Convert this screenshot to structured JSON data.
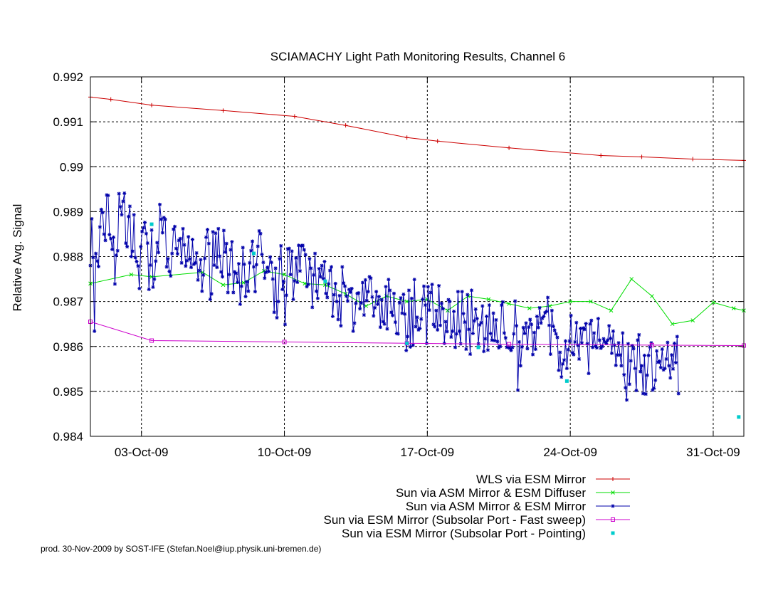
{
  "chart_data": {
    "type": "line",
    "title": "SCIAMACHY Light Path Monitoring Results, Channel 6",
    "xlabel": "",
    "ylabel": "Relative Avg. Signal",
    "x_type": "date",
    "xlim": [
      "2009-09-30T12:00",
      "2009-11-01T12:00"
    ],
    "ylim": [
      0.984,
      0.992
    ],
    "y_ticks": [
      0.984,
      0.985,
      0.986,
      0.987,
      0.988,
      0.989,
      0.99,
      0.991,
      0.992
    ],
    "y_tick_labels": [
      "0.984",
      "0.985",
      "0.986",
      "0.987",
      "0.988",
      "0.989",
      "0.99",
      "0.991",
      "0.992"
    ],
    "x_ticks": [
      "2009-10-03",
      "2009-10-10",
      "2009-10-17",
      "2009-10-24",
      "2009-10-31"
    ],
    "x_tick_labels": [
      "03-Oct-09",
      "10-Oct-09",
      "17-Oct-09",
      "24-Oct-09",
      "31-Oct-09"
    ],
    "grid": true,
    "legend_position": "below-right",
    "series": [
      {
        "name": "WLS via ESM Mirror",
        "color": "#cc0000",
        "marker": "plus",
        "x": [
          "2009-09-30T12:00",
          "2009-10-01T12:00",
          "2009-10-03T12:00",
          "2009-10-07T00:00",
          "2009-10-10T12:00",
          "2009-10-13T00:00",
          "2009-10-16T00:00",
          "2009-10-17T12:00",
          "2009-10-21T00:00",
          "2009-10-25T12:00",
          "2009-10-27T12:00",
          "2009-10-30T00:00",
          "2009-11-01T12:00"
        ],
        "y": [
          0.99155,
          0.9915,
          0.99137,
          0.99125,
          0.99112,
          0.99092,
          0.99065,
          0.99057,
          0.99042,
          0.99025,
          0.99022,
          0.99017,
          0.99014
        ]
      },
      {
        "name": "Sun via ASM Mirror & ESM Diffuser",
        "color": "#00dd00",
        "marker": "x",
        "x": [
          "2009-09-30T12:00",
          "2009-10-02T12:00",
          "2009-10-03T12:00",
          "2009-10-06T00:00",
          "2009-10-07T00:00",
          "2009-10-08T00:00",
          "2009-10-09T00:00",
          "2009-10-10T00:00",
          "2009-10-11T00:00",
          "2009-10-12T00:00",
          "2009-10-13T00:00",
          "2009-10-14T00:00",
          "2009-10-15T00:00",
          "2009-10-16T00:00",
          "2009-10-17T00:00",
          "2009-10-18T00:00",
          "2009-10-19T00:00",
          "2009-10-20T00:00",
          "2009-10-21T00:00",
          "2009-10-22T00:00",
          "2009-10-23T00:00",
          "2009-10-24T00:00",
          "2009-10-25T00:00",
          "2009-10-26T00:00",
          "2009-10-27T00:00",
          "2009-10-28T00:00",
          "2009-10-29T00:00",
          "2009-10-30T00:00",
          "2009-10-31T00:00",
          "2009-11-01T00:00",
          "2009-11-01T12:00"
        ],
        "y": [
          0.9874,
          0.9876,
          0.98755,
          0.98765,
          0.98737,
          0.98742,
          0.98768,
          0.9876,
          0.9874,
          0.98737,
          0.98717,
          0.9869,
          0.98712,
          0.987,
          0.98705,
          0.9868,
          0.98712,
          0.98705,
          0.98695,
          0.98685,
          0.9869,
          0.987,
          0.987,
          0.9868,
          0.9875,
          0.98712,
          0.9865,
          0.98658,
          0.98698,
          0.98685,
          0.9868
        ]
      },
      {
        "name": "Sun via ASM Mirror & ESM Mirror",
        "color": "#0000aa",
        "marker": "star",
        "x0": "2009-09-30T12:00",
        "dx_hours": 1.6,
        "y": [
          0.9878,
          0.98884,
          0.98798,
          0.98634,
          0.98807,
          0.9879,
          0.98778,
          0.98866,
          0.98905,
          0.98898,
          0.9885,
          0.98836,
          0.98937,
          0.98936,
          0.98849,
          0.9884,
          0.98816,
          0.98843,
          0.98739,
          0.98803,
          0.98813,
          0.9894,
          0.98911,
          0.98893,
          0.98923,
          0.98941,
          0.9883,
          0.98822,
          0.98889,
          0.98912,
          0.988,
          0.98812,
          0.98893,
          0.98798,
          0.98789,
          0.98779,
          0.98729,
          0.98822,
          0.98856,
          0.98864,
          0.98876,
          0.98851,
          0.9883,
          0.98727,
          0.98781,
          0.98859,
          0.98732,
          0.9875,
          0.9879,
          0.98831,
          0.98809,
          0.98916,
          0.98883,
          0.98853,
          0.98887,
          0.98883,
          0.98777,
          0.98795,
          0.98767,
          0.98757,
          0.98807,
          0.98861,
          0.98867,
          0.98818,
          0.98806,
          0.98836,
          0.9884,
          0.98786,
          0.98862,
          0.98826,
          0.98779,
          0.98791,
          0.98844,
          0.98795,
          0.98776,
          0.98838,
          0.98783,
          0.98786,
          0.98808,
          0.98748,
          0.98769,
          0.98793,
          0.98723,
          0.98759,
          0.98796,
          0.98843,
          0.9886,
          0.98829,
          0.98705,
          0.98717,
          0.98855,
          0.98781,
          0.98852,
          0.98776,
          0.98862,
          0.98801,
          0.98766,
          0.98755,
          0.98858,
          0.9881,
          0.98829,
          0.9872,
          0.9876,
          0.98815,
          0.98833,
          0.9872,
          0.98766,
          0.98763,
          0.98743,
          0.98784,
          0.98694,
          0.98734,
          0.9882,
          0.98783,
          0.98711,
          0.98744,
          0.98723,
          0.98786,
          0.98813,
          0.98834,
          0.98777,
          0.98722,
          0.98782,
          0.98823,
          0.98857,
          0.98851,
          0.98805,
          0.98787,
          0.98752,
          0.98765,
          0.98776,
          0.98767,
          0.98799,
          0.98787,
          0.9875,
          0.98676,
          0.98774,
          0.98664,
          0.987,
          0.98795,
          0.98824,
          0.98727,
          0.98745,
          0.98649,
          0.98714,
          0.98817,
          0.98818,
          0.9876,
          0.98812,
          0.98705,
          0.98746,
          0.98797,
          0.98743,
          0.98825,
          0.98768,
          0.98824,
          0.98825,
          0.98815,
          0.98804,
          0.98733,
          0.98738,
          0.98795,
          0.98774,
          0.98687,
          0.98759,
          0.98807,
          0.98723,
          0.98707,
          0.98773,
          0.98755,
          0.9878,
          0.98751,
          0.98789,
          0.98718,
          0.98709,
          0.98739,
          0.98769,
          0.98777,
          0.98667,
          0.98715,
          0.9874,
          0.987,
          0.9866,
          0.98713,
          0.98646,
          0.98777,
          0.98741,
          0.98734,
          0.98712,
          0.98701,
          0.98727,
          0.98721,
          0.98729,
          0.98634,
          0.98652,
          0.98696,
          0.98718,
          0.98719,
          0.98684,
          0.98697,
          0.98742,
          0.9867,
          0.98748,
          0.98702,
          0.98722,
          0.98755,
          0.98752,
          0.9871,
          0.98668,
          0.98686,
          0.98722,
          0.98694,
          0.98711,
          0.98643,
          0.98704,
          0.98655,
          0.9865,
          0.98733,
          0.98639,
          0.98749,
          0.98725,
          0.98676,
          0.98669,
          0.98718,
          0.98654,
          0.98629,
          0.98628,
          0.98697,
          0.98708,
          0.98674,
          0.98716,
          0.98672,
          0.98591,
          0.98622,
          0.98725,
          0.98599,
          0.98707,
          0.98603,
          0.98749,
          0.98644,
          0.98665,
          0.98637,
          0.9864,
          0.98661,
          0.98705,
          0.98734,
          0.98692,
          0.98607,
          0.98733,
          0.98681,
          0.9872,
          0.98738,
          0.98649,
          0.98644,
          0.9868,
          0.98637,
          0.98735,
          0.98647,
          0.98696,
          0.98684,
          0.98607,
          0.98655,
          0.98633,
          0.98704,
          0.987,
          0.98621,
          0.98634,
          0.98678,
          0.98598,
          0.98628,
          0.98722,
          0.98634,
          0.98606,
          0.98722,
          0.98673,
          0.98654,
          0.98594,
          0.98715,
          0.98638,
          0.98583,
          0.98725,
          0.98629,
          0.98657,
          0.98683,
          0.98662,
          0.98606,
          0.98648,
          0.98653,
          0.9869,
          0.98589,
          0.98617,
          0.98667,
          0.98592,
          0.98692,
          0.98629,
          0.98614,
          0.98674,
          0.98613,
          0.98659,
          0.98611,
          0.98597,
          0.986,
          0.98692,
          0.98699,
          0.9863,
          0.98619,
          0.98598,
          0.98599,
          0.98596,
          0.98591,
          0.98598,
          0.98628,
          0.98701,
          0.98646,
          0.98503,
          0.9861,
          0.98557,
          0.98599,
          0.98642,
          0.98629,
          0.98652,
          0.98595,
          0.98643,
          0.9866,
          0.98649,
          0.98582,
          0.98631,
          0.98594,
          0.98667,
          0.98642,
          0.98686,
          0.98652,
          0.98663,
          0.98667,
          0.98675,
          0.98678,
          0.98709,
          0.98647,
          0.98583,
          0.9868,
          0.98645,
          0.98636,
          0.98628,
          0.9862,
          0.98547,
          0.98587,
          0.98532,
          0.98561,
          0.9857,
          0.98612,
          0.98551,
          0.98593,
          0.98612,
          0.98669,
          0.98586,
          0.98582,
          0.9861,
          0.98653,
          0.98603,
          0.98572,
          0.9864,
          0.98608,
          0.98641,
          0.98638,
          0.98651,
          0.98606,
          0.9854,
          0.9865,
          0.98658,
          0.98598,
          0.9863,
          0.98601,
          0.98597,
          0.98662,
          0.98614,
          0.98596,
          0.986,
          0.98617,
          0.9861,
          0.98607,
          0.98614,
          0.98646,
          0.98618,
          0.98585,
          0.98634,
          0.98603,
          0.98558,
          0.98581,
          0.98608,
          0.98581,
          0.98557,
          0.9863,
          0.98537,
          0.98508,
          0.98481,
          0.98606,
          0.98516,
          0.98568,
          0.98602,
          0.98595,
          0.98551,
          0.98502,
          0.98614,
          0.98626,
          0.98544,
          0.98557,
          0.98495,
          0.9858,
          0.98494,
          0.98536,
          0.9858,
          0.98599,
          0.98608,
          0.98503,
          0.98507,
          0.98525,
          0.9859,
          0.98565,
          0.98567,
          0.98553,
          0.98594,
          0.98548,
          0.98551,
          0.98572,
          0.98609,
          0.98557,
          0.9853,
          0.98581,
          0.9855,
          0.98607,
          0.98564,
          0.98622,
          0.98495
        ]
      },
      {
        "name": "Sun via ESM Mirror (Subsolar Port - Fast sweep)",
        "color": "#cc00cc",
        "marker": "square-open",
        "x": [
          "2009-09-30T12:00",
          "2009-10-03T12:00",
          "2009-10-10T00:00",
          "2009-10-16T00:00",
          "2009-10-21T00:00",
          "2009-10-28T00:00",
          "2009-11-01T12:00"
        ],
        "y": [
          0.98655,
          0.98613,
          0.9861,
          0.98607,
          0.98605,
          0.98603,
          0.98602
        ]
      },
      {
        "name": "Sun via ESM Mirror (Subsolar Port - Pointing)",
        "color": "#00cccc",
        "marker": "square-filled",
        "line": false,
        "x": [
          "2009-10-03T12:00",
          "2009-10-08T12:00",
          "2009-10-12T00:00",
          "2009-10-16T00:00",
          "2009-10-19T12:00",
          "2009-10-23T20:00",
          "2009-11-01T06:00"
        ],
        "y": [
          0.98872,
          0.98807,
          0.98745,
          0.98607,
          0.98598,
          0.98523,
          0.98443
        ]
      }
    ]
  },
  "footer": {
    "credit": "prod. 30-Nov-2009 by SOST-IFE (Stefan.Noel@iup.physik.uni-bremen.de)"
  }
}
